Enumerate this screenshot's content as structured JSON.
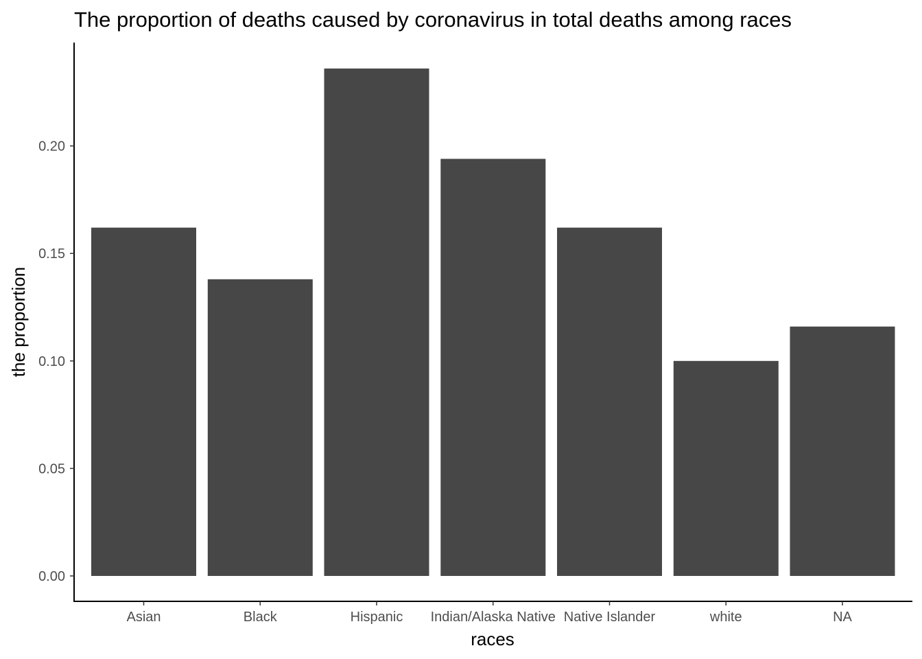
{
  "chart_data": {
    "type": "bar",
    "title": "The proportion of deaths caused by coronavirus in total deaths among races",
    "xlabel": "races",
    "ylabel": "the proportion",
    "categories": [
      "Asian",
      "Black",
      "Hispanic",
      "Indian/Alaska Native",
      "Native Islander",
      "white",
      "NA"
    ],
    "values": [
      0.162,
      0.138,
      0.236,
      0.194,
      0.162,
      0.1,
      0.116
    ],
    "ylim": [
      0,
      0.247
    ],
    "yticks": [
      0.0,
      0.05,
      0.1,
      0.15,
      0.2
    ],
    "ytick_labels": [
      "0.00",
      "0.05",
      "0.10",
      "0.15",
      "0.20"
    ],
    "bar_color": "#474747",
    "grid": false,
    "legend": "none"
  }
}
